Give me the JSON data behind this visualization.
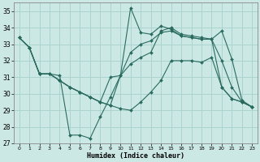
{
  "background_color": "#cce8e4",
  "grid_color": "#aad4d0",
  "line_color": "#2a6b60",
  "xlabel": "Humidex (Indice chaleur)",
  "x_values": [
    0,
    1,
    2,
    3,
    4,
    5,
    6,
    7,
    8,
    9,
    10,
    11,
    12,
    13,
    14,
    15,
    16,
    17,
    18,
    19,
    20,
    21,
    22,
    23
  ],
  "series": [
    [
      33.4,
      32.8,
      31.2,
      31.2,
      31.1,
      27.5,
      27.5,
      27.3,
      28.6,
      29.8,
      31.1,
      35.2,
      33.7,
      33.6,
      34.1,
      33.9,
      33.5,
      33.4,
      33.3,
      33.3,
      30.4,
      29.7,
      29.5,
      29.2
    ],
    [
      33.4,
      32.8,
      31.2,
      31.2,
      30.8,
      30.4,
      30.1,
      29.8,
      29.5,
      31.0,
      31.1,
      32.5,
      33.0,
      33.2,
      33.7,
      33.8,
      33.5,
      33.4,
      33.3,
      33.3,
      33.8,
      32.1,
      29.6,
      29.2
    ],
    [
      33.4,
      32.8,
      31.2,
      31.2,
      30.8,
      30.4,
      30.1,
      29.8,
      29.5,
      29.3,
      31.1,
      31.8,
      32.2,
      32.5,
      33.8,
      34.0,
      33.6,
      33.5,
      33.4,
      33.3,
      32.0,
      30.4,
      29.5,
      29.2
    ],
    [
      33.4,
      32.8,
      31.2,
      31.2,
      30.8,
      30.4,
      30.1,
      29.8,
      29.5,
      29.3,
      29.1,
      29.0,
      29.5,
      30.1,
      30.8,
      32.0,
      32.0,
      32.0,
      31.9,
      32.2,
      30.4,
      29.7,
      29.5,
      29.2
    ]
  ],
  "ylim": [
    27,
    35.5
  ],
  "yticks": [
    27,
    28,
    29,
    30,
    31,
    32,
    33,
    34,
    35
  ],
  "xlim": [
    -0.5,
    23.5
  ],
  "xticks": [
    0,
    1,
    2,
    3,
    4,
    5,
    6,
    7,
    8,
    9,
    10,
    11,
    12,
    13,
    14,
    15,
    16,
    17,
    18,
    19,
    20,
    21,
    22,
    23
  ],
  "tick_fontsize": 5.5,
  "xlabel_fontsize": 6.0
}
